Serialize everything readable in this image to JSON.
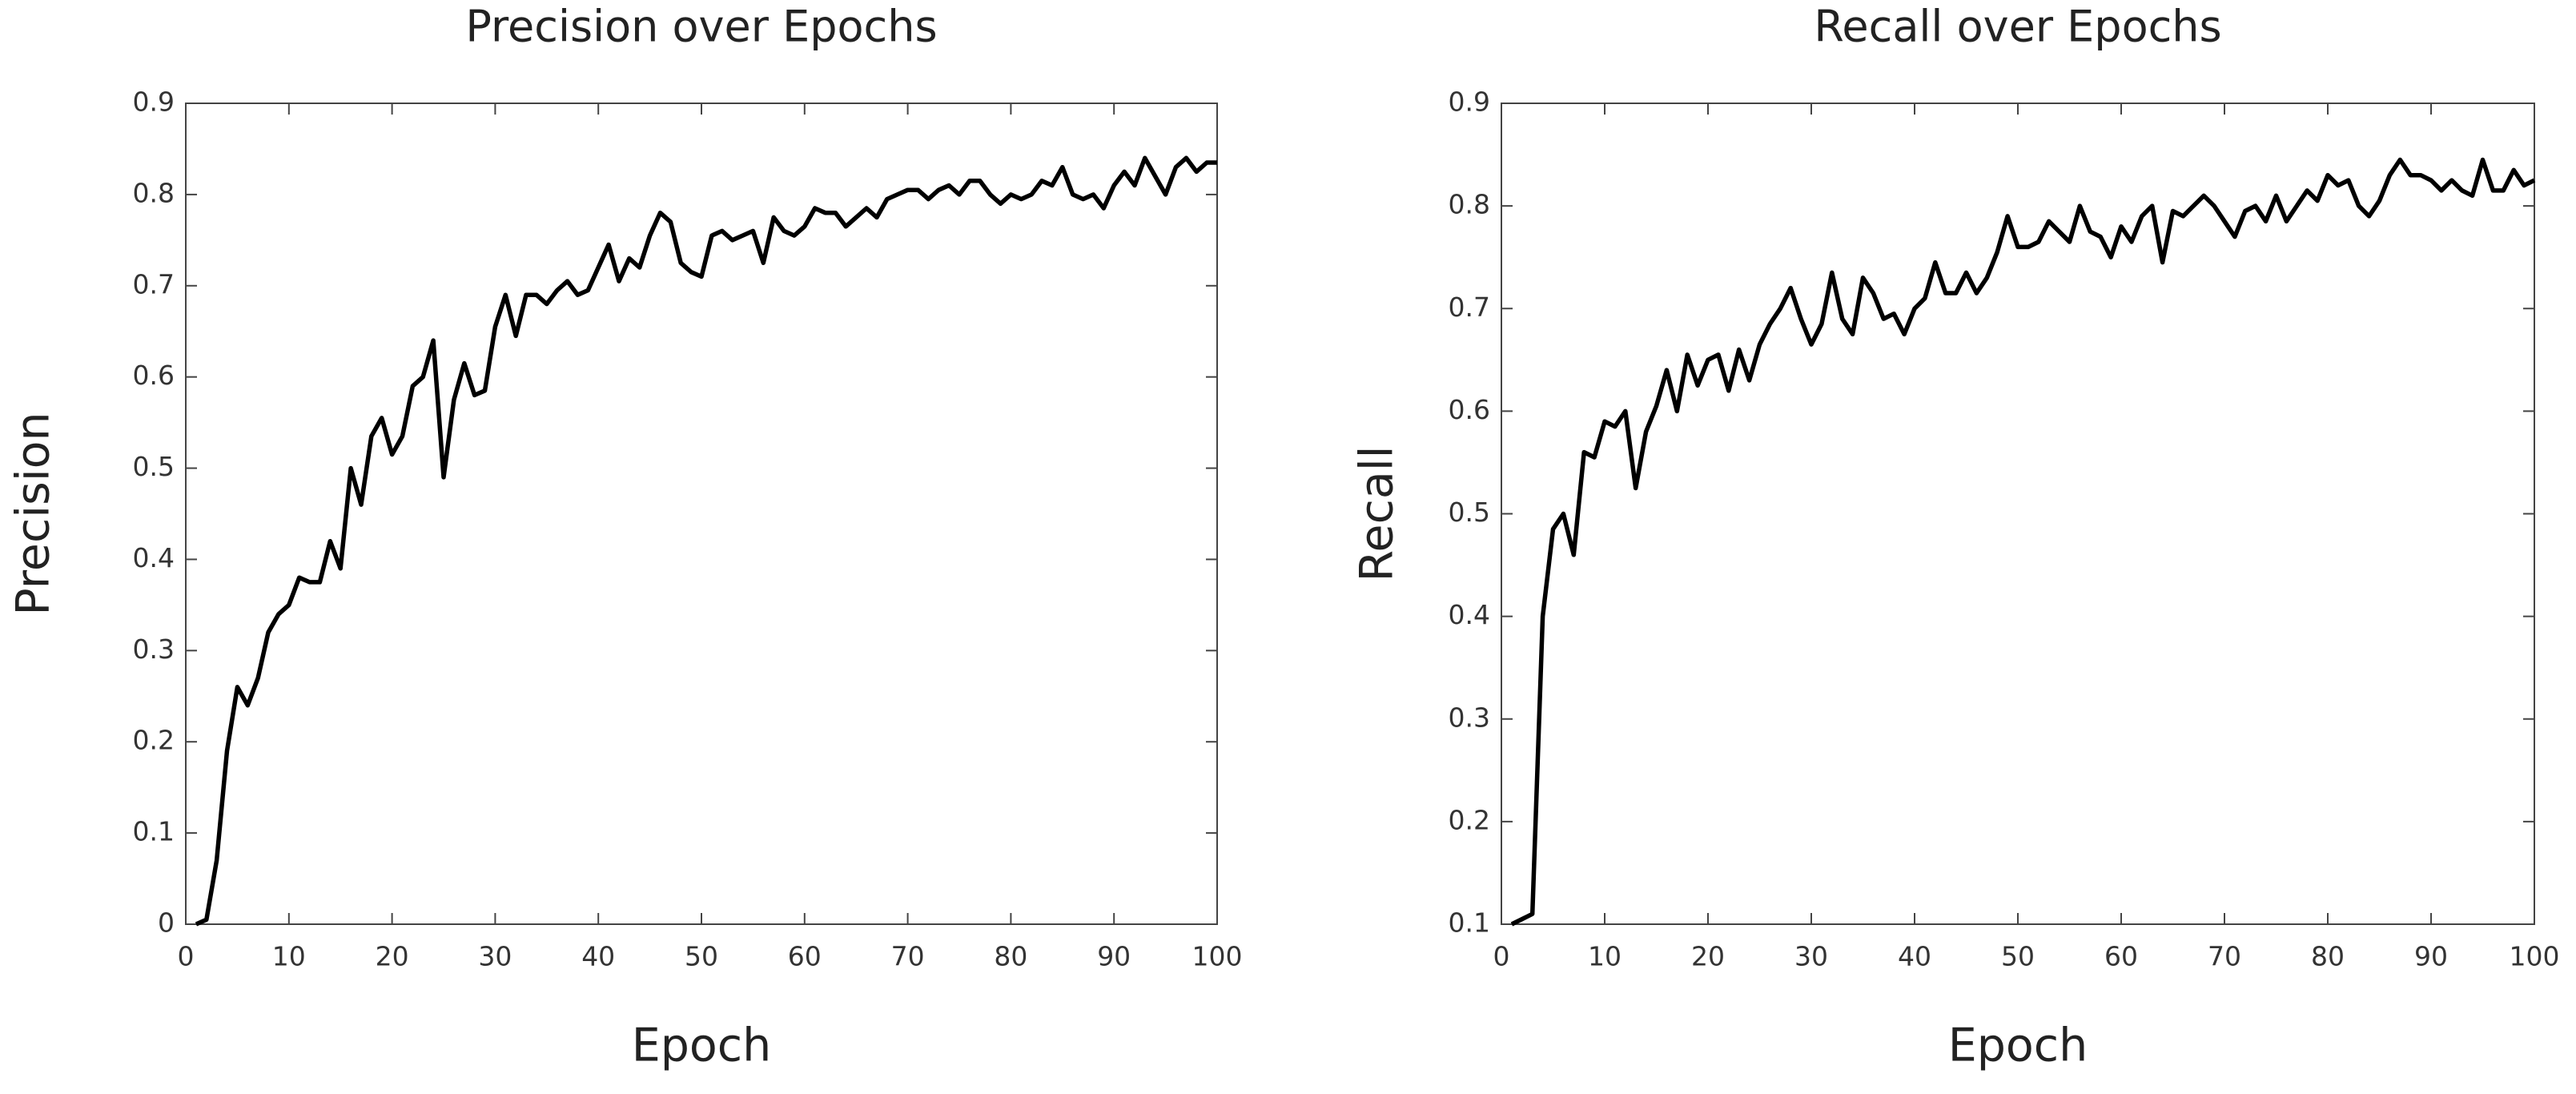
{
  "chart_data": [
    {
      "type": "line",
      "title": "Precision over Epochs",
      "xlabel": "Epoch",
      "ylabel": "Precision",
      "color": "#000000",
      "x": [
        1,
        2,
        3,
        4,
        5,
        6,
        7,
        8,
        9,
        10,
        11,
        12,
        13,
        14,
        15,
        16,
        17,
        18,
        19,
        20,
        21,
        22,
        23,
        24,
        25,
        26,
        27,
        28,
        29,
        30,
        31,
        32,
        33,
        34,
        35,
        36,
        37,
        38,
        39,
        40,
        41,
        42,
        43,
        44,
        45,
        46,
        47,
        48,
        49,
        50,
        51,
        52,
        53,
        54,
        55,
        56,
        57,
        58,
        59,
        60,
        61,
        62,
        63,
        64,
        65,
        66,
        67,
        68,
        69,
        70,
        71,
        72,
        73,
        74,
        75,
        76,
        77,
        78,
        79,
        80,
        81,
        82,
        83,
        84,
        85,
        86,
        87,
        88,
        89,
        90,
        91,
        92,
        93,
        94,
        95,
        96,
        97,
        98,
        99,
        100
      ],
      "values": [
        0,
        0.005,
        0.07,
        0.19,
        0.26,
        0.24,
        0.27,
        0.32,
        0.34,
        0.35,
        0.38,
        0.375,
        0.375,
        0.42,
        0.39,
        0.5,
        0.46,
        0.535,
        0.555,
        0.515,
        0.535,
        0.59,
        0.6,
        0.64,
        0.49,
        0.575,
        0.615,
        0.58,
        0.585,
        0.655,
        0.69,
        0.645,
        0.69,
        0.69,
        0.68,
        0.695,
        0.705,
        0.69,
        0.695,
        0.72,
        0.745,
        0.705,
        0.73,
        0.72,
        0.755,
        0.78,
        0.77,
        0.725,
        0.715,
        0.71,
        0.755,
        0.76,
        0.75,
        0.755,
        0.76,
        0.725,
        0.775,
        0.76,
        0.755,
        0.765,
        0.785,
        0.78,
        0.78,
        0.765,
        0.775,
        0.785,
        0.775,
        0.795,
        0.8,
        0.805,
        0.805,
        0.795,
        0.805,
        0.81,
        0.8,
        0.815,
        0.815,
        0.8,
        0.79,
        0.8,
        0.795,
        0.8,
        0.815,
        0.81,
        0.83,
        0.8,
        0.795,
        0.8,
        0.785,
        0.81,
        0.825,
        0.81,
        0.84,
        0.82,
        0.8,
        0.83,
        0.84,
        0.825,
        0.835,
        0.835
      ],
      "xlim": [
        0,
        100
      ],
      "xticks": [
        0,
        10,
        20,
        30,
        40,
        50,
        60,
        70,
        80,
        90,
        100
      ],
      "ylim": [
        0,
        0.9
      ],
      "yticks": [
        0,
        0.1,
        0.2,
        0.3,
        0.4,
        0.5,
        0.6,
        0.7,
        0.8,
        0.9
      ],
      "grid": false
    },
    {
      "type": "line",
      "title": "Recall over Epochs",
      "xlabel": "Epoch",
      "ylabel": "Recall",
      "color": "#000000",
      "x": [
        1,
        2,
        3,
        4,
        5,
        6,
        7,
        8,
        9,
        10,
        11,
        12,
        13,
        14,
        15,
        16,
        17,
        18,
        19,
        20,
        21,
        22,
        23,
        24,
        25,
        26,
        27,
        28,
        29,
        30,
        31,
        32,
        33,
        34,
        35,
        36,
        37,
        38,
        39,
        40,
        41,
        42,
        43,
        44,
        45,
        46,
        47,
        48,
        49,
        50,
        51,
        52,
        53,
        54,
        55,
        56,
        57,
        58,
        59,
        60,
        61,
        62,
        63,
        64,
        65,
        66,
        67,
        68,
        69,
        70,
        71,
        72,
        73,
        74,
        75,
        76,
        77,
        78,
        79,
        80,
        81,
        82,
        83,
        84,
        85,
        86,
        87,
        88,
        89,
        90,
        91,
        92,
        93,
        94,
        95,
        96,
        97,
        98,
        99,
        100
      ],
      "values": [
        0.1,
        0.105,
        0.11,
        0.4,
        0.485,
        0.5,
        0.46,
        0.56,
        0.555,
        0.59,
        0.585,
        0.6,
        0.525,
        0.58,
        0.605,
        0.64,
        0.6,
        0.655,
        0.625,
        0.65,
        0.655,
        0.62,
        0.66,
        0.63,
        0.665,
        0.685,
        0.7,
        0.72,
        0.69,
        0.665,
        0.685,
        0.735,
        0.69,
        0.675,
        0.73,
        0.715,
        0.69,
        0.695,
        0.675,
        0.7,
        0.71,
        0.745,
        0.715,
        0.715,
        0.735,
        0.715,
        0.73,
        0.755,
        0.79,
        0.76,
        0.76,
        0.765,
        0.785,
        0.775,
        0.765,
        0.8,
        0.775,
        0.77,
        0.75,
        0.78,
        0.765,
        0.79,
        0.8,
        0.745,
        0.795,
        0.79,
        0.8,
        0.81,
        0.8,
        0.785,
        0.77,
        0.795,
        0.8,
        0.785,
        0.81,
        0.785,
        0.8,
        0.815,
        0.805,
        0.83,
        0.82,
        0.825,
        0.8,
        0.79,
        0.805,
        0.83,
        0.845,
        0.83,
        0.83,
        0.825,
        0.815,
        0.825,
        0.815,
        0.81,
        0.845,
        0.815,
        0.815,
        0.835,
        0.82,
        0.825
      ],
      "xlim": [
        0,
        100
      ],
      "xticks": [
        0,
        10,
        20,
        30,
        40,
        50,
        60,
        70,
        80,
        90,
        100
      ],
      "ylim": [
        0.1,
        0.9
      ],
      "yticks": [
        0.1,
        0.2,
        0.3,
        0.4,
        0.5,
        0.6,
        0.7,
        0.8,
        0.9
      ],
      "grid": false
    }
  ]
}
